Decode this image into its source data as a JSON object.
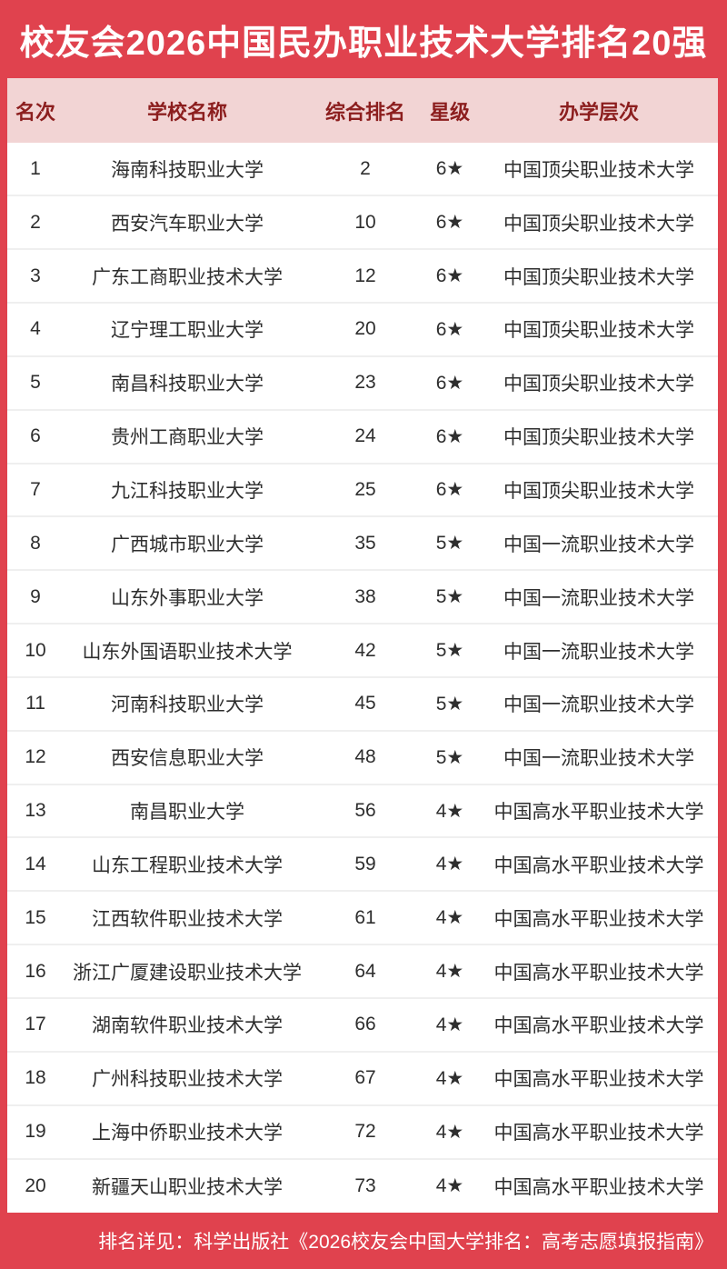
{
  "title": "校友会2026中国民办职业技术大学排名20强",
  "colors": {
    "banner_red": "#e0424e",
    "header_pink": "#f2d4d4",
    "header_text_maroon": "#8c1e1e",
    "body_text": "#2e2e2e",
    "row_divider": "#efefef"
  },
  "table": {
    "headers": [
      "名次",
      "学校名称",
      "综合排名",
      "星级",
      "办学层次"
    ],
    "rows": [
      {
        "rank": "1",
        "school": "海南科技职业大学",
        "overall": "2",
        "star": "6★",
        "level": "中国顶尖职业技术大学"
      },
      {
        "rank": "2",
        "school": "西安汽车职业大学",
        "overall": "10",
        "star": "6★",
        "level": "中国顶尖职业技术大学"
      },
      {
        "rank": "3",
        "school": "广东工商职业技术大学",
        "overall": "12",
        "star": "6★",
        "level": "中国顶尖职业技术大学"
      },
      {
        "rank": "4",
        "school": "辽宁理工职业大学",
        "overall": "20",
        "star": "6★",
        "level": "中国顶尖职业技术大学"
      },
      {
        "rank": "5",
        "school": "南昌科技职业大学",
        "overall": "23",
        "star": "6★",
        "level": "中国顶尖职业技术大学"
      },
      {
        "rank": "6",
        "school": "贵州工商职业大学",
        "overall": "24",
        "star": "6★",
        "level": "中国顶尖职业技术大学"
      },
      {
        "rank": "7",
        "school": "九江科技职业大学",
        "overall": "25",
        "star": "6★",
        "level": "中国顶尖职业技术大学"
      },
      {
        "rank": "8",
        "school": "广西城市职业大学",
        "overall": "35",
        "star": "5★",
        "level": "中国一流职业技术大学"
      },
      {
        "rank": "9",
        "school": "山东外事职业大学",
        "overall": "38",
        "star": "5★",
        "level": "中国一流职业技术大学"
      },
      {
        "rank": "10",
        "school": "山东外国语职业技术大学",
        "overall": "42",
        "star": "5★",
        "level": "中国一流职业技术大学"
      },
      {
        "rank": "11",
        "school": "河南科技职业大学",
        "overall": "45",
        "star": "5★",
        "level": "中国一流职业技术大学"
      },
      {
        "rank": "12",
        "school": "西安信息职业大学",
        "overall": "48",
        "star": "5★",
        "level": "中国一流职业技术大学"
      },
      {
        "rank": "13",
        "school": "南昌职业大学",
        "overall": "56",
        "star": "4★",
        "level": "中国高水平职业技术大学"
      },
      {
        "rank": "14",
        "school": "山东工程职业技术大学",
        "overall": "59",
        "star": "4★",
        "level": "中国高水平职业技术大学"
      },
      {
        "rank": "15",
        "school": "江西软件职业技术大学",
        "overall": "61",
        "star": "4★",
        "level": "中国高水平职业技术大学"
      },
      {
        "rank": "16",
        "school": "浙江广厦建设职业技术大学",
        "overall": "64",
        "star": "4★",
        "level": "中国高水平职业技术大学"
      },
      {
        "rank": "17",
        "school": "湖南软件职业技术大学",
        "overall": "66",
        "star": "4★",
        "level": "中国高水平职业技术大学"
      },
      {
        "rank": "18",
        "school": "广州科技职业技术大学",
        "overall": "67",
        "star": "4★",
        "level": "中国高水平职业技术大学"
      },
      {
        "rank": "19",
        "school": "上海中侨职业技术大学",
        "overall": "72",
        "star": "4★",
        "level": "中国高水平职业技术大学"
      },
      {
        "rank": "20",
        "school": "新疆天山职业技术大学",
        "overall": "73",
        "star": "4★",
        "level": "中国高水平职业技术大学"
      }
    ]
  },
  "footer": {
    "note": "排名详见：科学出版社《2026校友会中国大学排名：高考志愿填报指南》"
  }
}
